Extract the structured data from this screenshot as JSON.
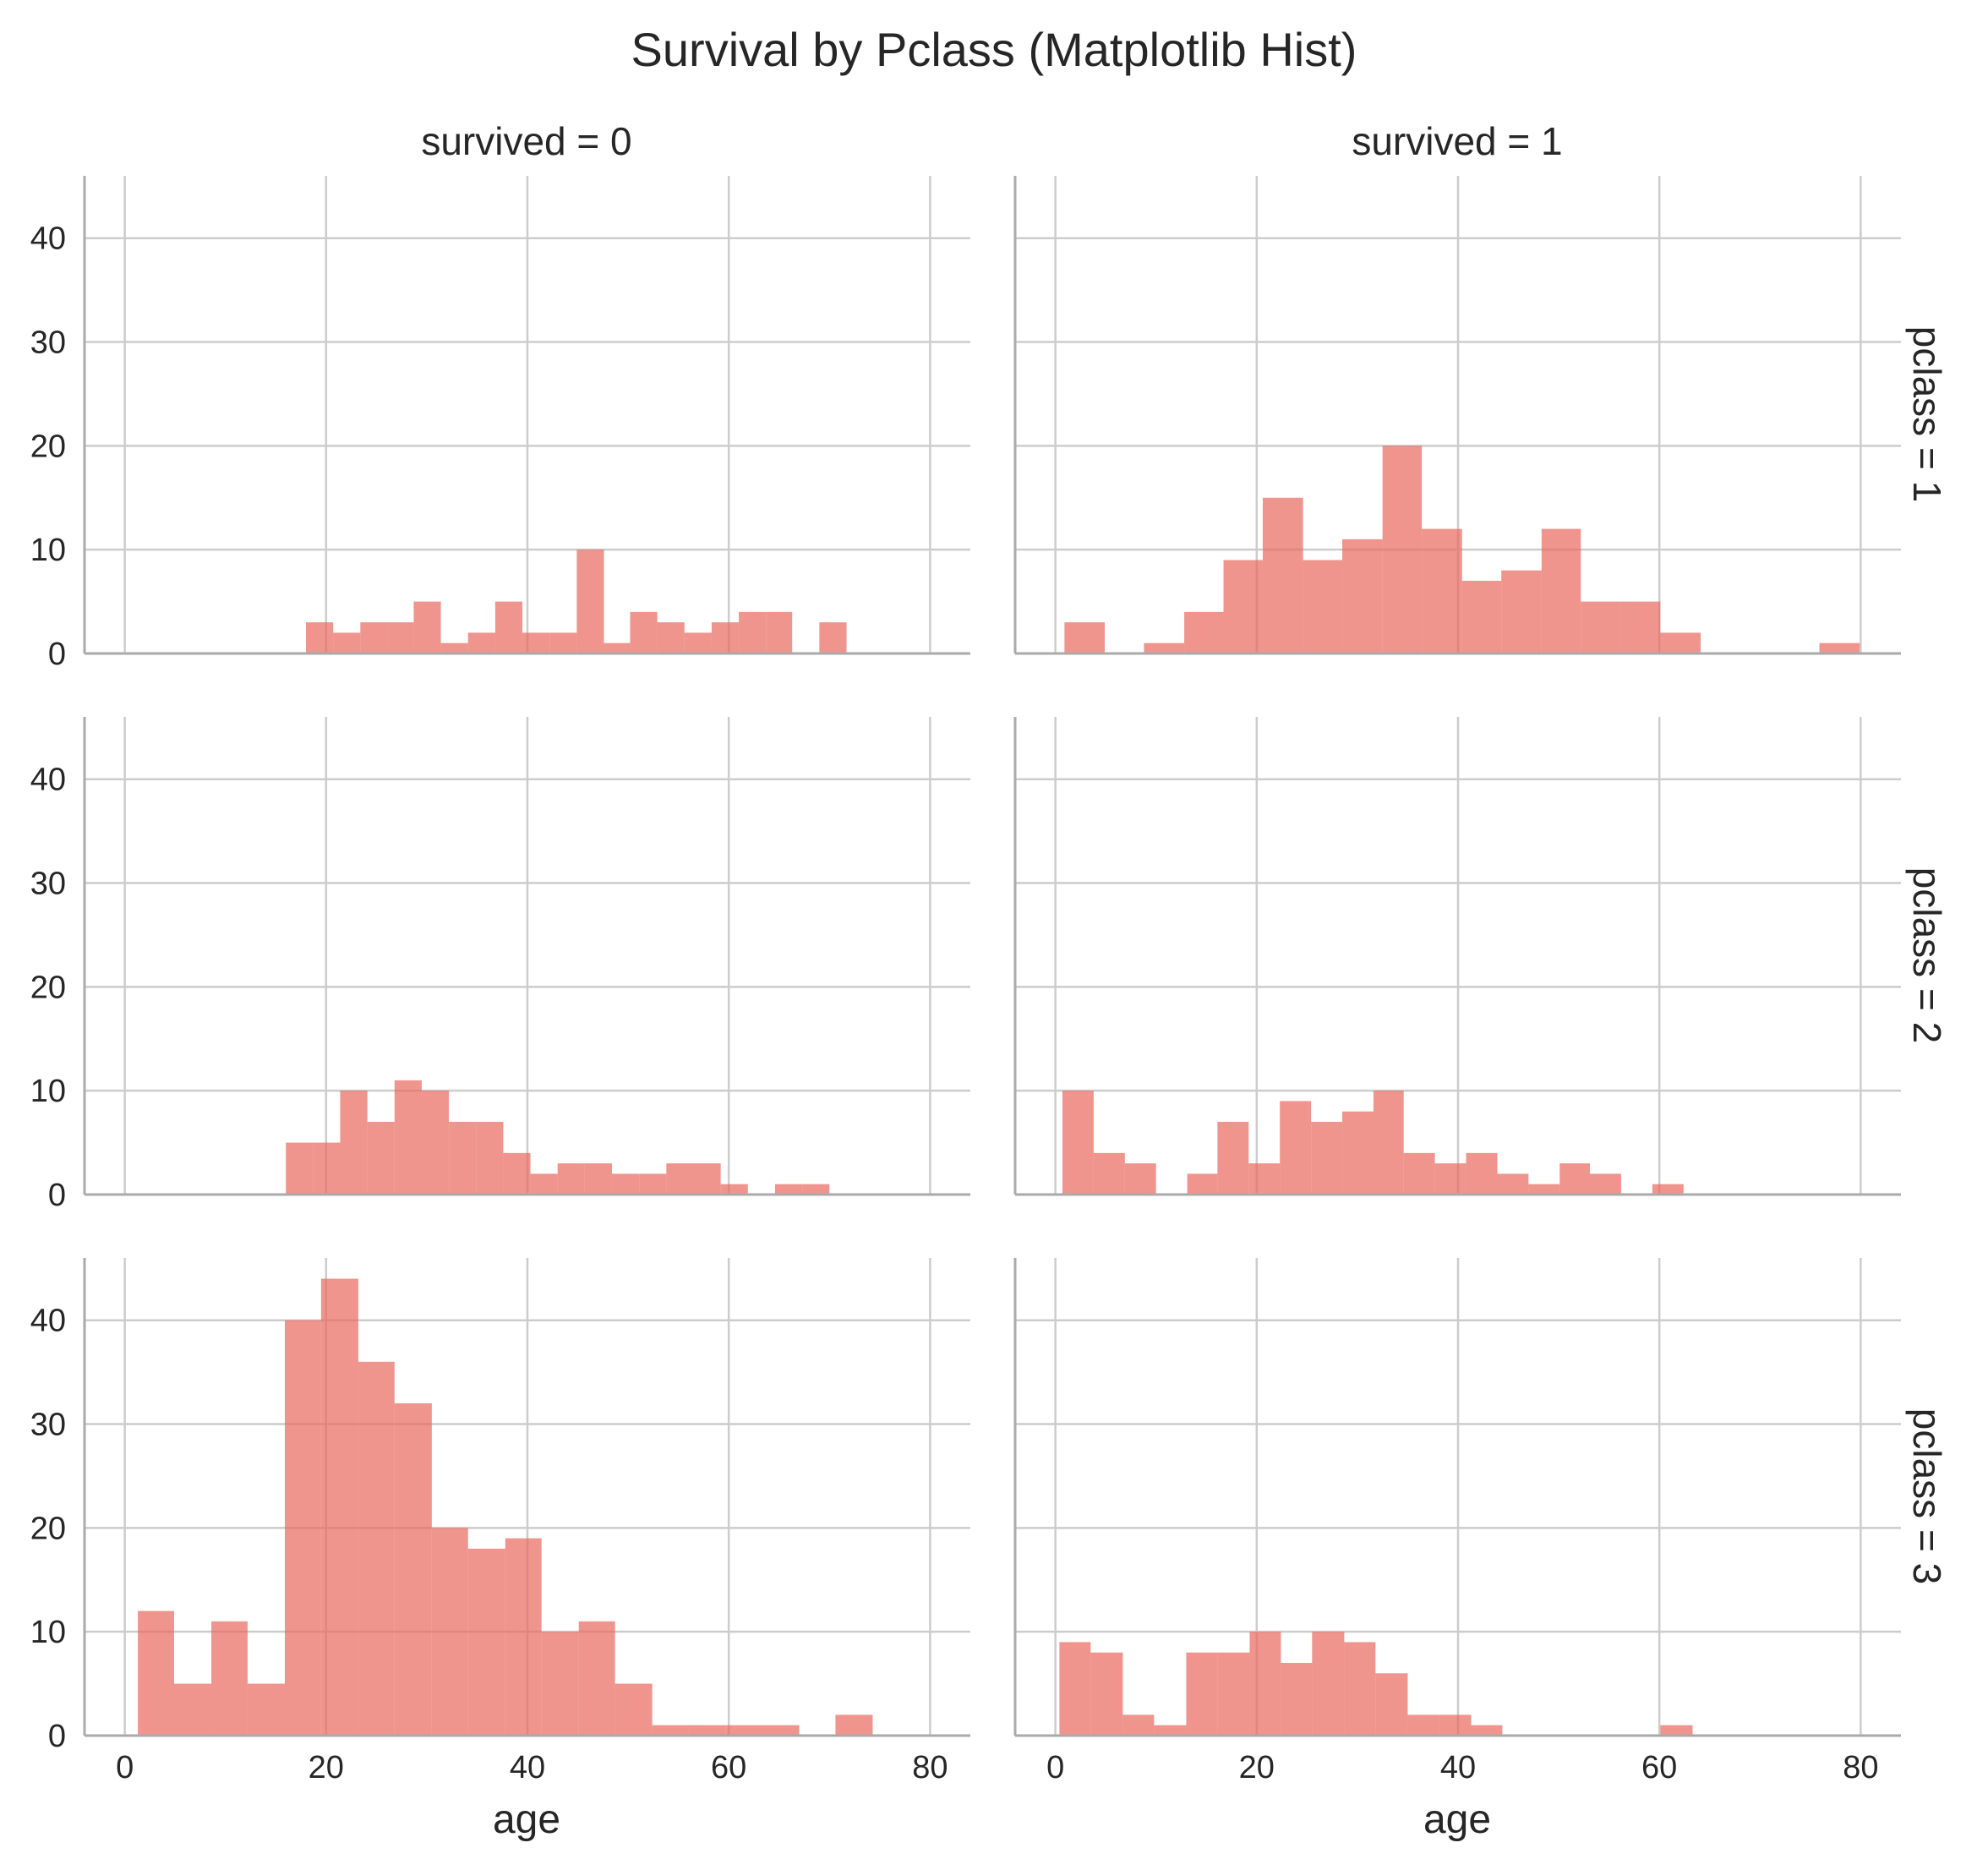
{
  "chart_data": {
    "type": "bar",
    "title": "Survival by Pclass (Matplotlib Hist)",
    "xlabel": "age",
    "ylabel": "",
    "xlim": [
      -4,
      84
    ],
    "ylim": [
      0,
      46
    ],
    "xticks": [
      "0",
      "20",
      "40",
      "60",
      "80"
    ],
    "yticks": [
      "0",
      "10",
      "20",
      "30",
      "40"
    ],
    "grid": true,
    "bar_color": "#e8685c",
    "col_labels": [
      "survived = 0",
      "survived = 1"
    ],
    "row_labels": [
      "pclass = 1",
      "pclass = 2",
      "pclass = 3"
    ],
    "panels": [
      {
        "row": 0,
        "col": 0,
        "bins": [
          {
            "x0": 18.0,
            "x1": 20.7,
            "value": 3
          },
          {
            "x0": 20.7,
            "x1": 23.4,
            "value": 2
          },
          {
            "x0": 23.4,
            "x1": 26.1,
            "value": 3
          },
          {
            "x0": 26.1,
            "x1": 28.7,
            "value": 3
          },
          {
            "x0": 28.7,
            "x1": 31.4,
            "value": 5
          },
          {
            "x0": 31.4,
            "x1": 34.1,
            "value": 1
          },
          {
            "x0": 34.1,
            "x1": 36.8,
            "value": 2
          },
          {
            "x0": 36.8,
            "x1": 39.5,
            "value": 5
          },
          {
            "x0": 39.5,
            "x1": 42.2,
            "value": 2
          },
          {
            "x0": 42.2,
            "x1": 44.9,
            "value": 2
          },
          {
            "x0": 44.9,
            "x1": 47.6,
            "value": 10
          },
          {
            "x0": 47.6,
            "x1": 50.2,
            "value": 1
          },
          {
            "x0": 50.2,
            "x1": 52.9,
            "value": 4
          },
          {
            "x0": 52.9,
            "x1": 55.6,
            "value": 3
          },
          {
            "x0": 55.6,
            "x1": 58.3,
            "value": 2
          },
          {
            "x0": 58.3,
            "x1": 61.0,
            "value": 3
          },
          {
            "x0": 61.0,
            "x1": 63.7,
            "value": 4
          },
          {
            "x0": 63.7,
            "x1": 66.3,
            "value": 4
          },
          {
            "x0": 66.3,
            "x1": 69.0,
            "value": 0
          },
          {
            "x0": 69.0,
            "x1": 71.7,
            "value": 3
          }
        ]
      },
      {
        "row": 0,
        "col": 1,
        "bins": [
          {
            "x0": 0.9,
            "x1": 4.9,
            "value": 3
          },
          {
            "x0": 4.9,
            "x1": 8.8,
            "value": 0
          },
          {
            "x0": 8.8,
            "x1": 12.8,
            "value": 1
          },
          {
            "x0": 12.8,
            "x1": 16.7,
            "value": 4
          },
          {
            "x0": 16.7,
            "x1": 20.6,
            "value": 9
          },
          {
            "x0": 20.6,
            "x1": 24.6,
            "value": 15
          },
          {
            "x0": 24.6,
            "x1": 28.5,
            "value": 9
          },
          {
            "x0": 28.5,
            "x1": 32.5,
            "value": 11
          },
          {
            "x0": 32.5,
            "x1": 36.4,
            "value": 20
          },
          {
            "x0": 36.4,
            "x1": 40.4,
            "value": 12
          },
          {
            "x0": 40.4,
            "x1": 44.3,
            "value": 7
          },
          {
            "x0": 44.3,
            "x1": 48.3,
            "value": 8
          },
          {
            "x0": 48.3,
            "x1": 52.2,
            "value": 12
          },
          {
            "x0": 52.2,
            "x1": 56.2,
            "value": 5
          },
          {
            "x0": 56.2,
            "x1": 60.1,
            "value": 5
          },
          {
            "x0": 60.1,
            "x1": 64.1,
            "value": 2
          },
          {
            "x0": 64.1,
            "x1": 68.0,
            "value": 0
          },
          {
            "x0": 68.0,
            "x1": 72.0,
            "value": 0
          },
          {
            "x0": 72.0,
            "x1": 75.9,
            "value": 0
          },
          {
            "x0": 75.9,
            "x1": 79.9,
            "value": 1
          }
        ]
      },
      {
        "row": 1,
        "col": 0,
        "bins": [
          {
            "x0": 16.0,
            "x1": 18.7,
            "value": 5
          },
          {
            "x0": 18.7,
            "x1": 21.4,
            "value": 5
          },
          {
            "x0": 21.4,
            "x1": 24.1,
            "value": 10
          },
          {
            "x0": 24.1,
            "x1": 26.8,
            "value": 7
          },
          {
            "x0": 26.8,
            "x1": 29.5,
            "value": 11
          },
          {
            "x0": 29.5,
            "x1": 32.2,
            "value": 10
          },
          {
            "x0": 32.2,
            "x1": 34.9,
            "value": 7
          },
          {
            "x0": 34.9,
            "x1": 37.6,
            "value": 7
          },
          {
            "x0": 37.6,
            "x1": 40.3,
            "value": 4
          },
          {
            "x0": 40.3,
            "x1": 43.0,
            "value": 2
          },
          {
            "x0": 43.0,
            "x1": 45.7,
            "value": 3
          },
          {
            "x0": 45.7,
            "x1": 48.4,
            "value": 3
          },
          {
            "x0": 48.4,
            "x1": 51.1,
            "value": 2
          },
          {
            "x0": 51.1,
            "x1": 53.8,
            "value": 2
          },
          {
            "x0": 53.8,
            "x1": 56.5,
            "value": 3
          },
          {
            "x0": 56.5,
            "x1": 59.2,
            "value": 3
          },
          {
            "x0": 59.2,
            "x1": 61.9,
            "value": 1
          },
          {
            "x0": 61.9,
            "x1": 64.6,
            "value": 0
          },
          {
            "x0": 64.6,
            "x1": 67.3,
            "value": 1
          },
          {
            "x0": 67.3,
            "x1": 70.0,
            "value": 1
          }
        ]
      },
      {
        "row": 1,
        "col": 1,
        "bins": [
          {
            "x0": 0.7,
            "x1": 3.8,
            "value": 10
          },
          {
            "x0": 3.8,
            "x1": 6.9,
            "value": 4
          },
          {
            "x0": 6.9,
            "x1": 10.0,
            "value": 3
          },
          {
            "x0": 10.0,
            "x1": 13.1,
            "value": 0
          },
          {
            "x0": 13.1,
            "x1": 16.1,
            "value": 2
          },
          {
            "x0": 16.1,
            "x1": 19.2,
            "value": 7
          },
          {
            "x0": 19.2,
            "x1": 22.3,
            "value": 3
          },
          {
            "x0": 22.3,
            "x1": 25.4,
            "value": 9
          },
          {
            "x0": 25.4,
            "x1": 28.5,
            "value": 7
          },
          {
            "x0": 28.5,
            "x1": 31.6,
            "value": 8
          },
          {
            "x0": 31.6,
            "x1": 34.6,
            "value": 10
          },
          {
            "x0": 34.6,
            "x1": 37.7,
            "value": 4
          },
          {
            "x0": 37.7,
            "x1": 40.8,
            "value": 3
          },
          {
            "x0": 40.8,
            "x1": 43.9,
            "value": 4
          },
          {
            "x0": 43.9,
            "x1": 47.0,
            "value": 2
          },
          {
            "x0": 47.0,
            "x1": 50.1,
            "value": 1
          },
          {
            "x0": 50.1,
            "x1": 53.1,
            "value": 3
          },
          {
            "x0": 53.1,
            "x1": 56.2,
            "value": 2
          },
          {
            "x0": 56.2,
            "x1": 59.3,
            "value": 0
          },
          {
            "x0": 59.3,
            "x1": 62.4,
            "value": 1
          }
        ]
      },
      {
        "row": 2,
        "col": 0,
        "bins": [
          {
            "x0": 1.3,
            "x1": 4.9,
            "value": 12
          },
          {
            "x0": 4.9,
            "x1": 8.6,
            "value": 5
          },
          {
            "x0": 8.6,
            "x1": 12.2,
            "value": 11
          },
          {
            "x0": 12.2,
            "x1": 15.9,
            "value": 5
          },
          {
            "x0": 15.9,
            "x1": 19.5,
            "value": 40
          },
          {
            "x0": 19.5,
            "x1": 23.2,
            "value": 44
          },
          {
            "x0": 23.2,
            "x1": 26.8,
            "value": 36
          },
          {
            "x0": 26.8,
            "x1": 30.5,
            "value": 32
          },
          {
            "x0": 30.5,
            "x1": 34.1,
            "value": 20
          },
          {
            "x0": 34.1,
            "x1": 37.8,
            "value": 18
          },
          {
            "x0": 37.8,
            "x1": 41.4,
            "value": 19
          },
          {
            "x0": 41.4,
            "x1": 45.1,
            "value": 10
          },
          {
            "x0": 45.1,
            "x1": 48.7,
            "value": 11
          },
          {
            "x0": 48.7,
            "x1": 52.4,
            "value": 5
          },
          {
            "x0": 52.4,
            "x1": 56.0,
            "value": 1
          },
          {
            "x0": 56.0,
            "x1": 59.7,
            "value": 1
          },
          {
            "x0": 59.7,
            "x1": 63.3,
            "value": 1
          },
          {
            "x0": 63.3,
            "x1": 67.0,
            "value": 1
          },
          {
            "x0": 67.0,
            "x1": 70.6,
            "value": 0
          },
          {
            "x0": 70.6,
            "x1": 74.3,
            "value": 2
          }
        ]
      },
      {
        "row": 2,
        "col": 1,
        "bins": [
          {
            "x0": 0.4,
            "x1": 3.5,
            "value": 9
          },
          {
            "x0": 3.5,
            "x1": 6.7,
            "value": 8
          },
          {
            "x0": 6.7,
            "x1": 9.8,
            "value": 2
          },
          {
            "x0": 9.8,
            "x1": 13.0,
            "value": 1
          },
          {
            "x0": 13.0,
            "x1": 16.1,
            "value": 8
          },
          {
            "x0": 16.1,
            "x1": 19.3,
            "value": 8
          },
          {
            "x0": 19.3,
            "x1": 22.4,
            "value": 10
          },
          {
            "x0": 22.4,
            "x1": 25.5,
            "value": 7
          },
          {
            "x0": 25.5,
            "x1": 28.7,
            "value": 10
          },
          {
            "x0": 28.7,
            "x1": 31.8,
            "value": 9
          },
          {
            "x0": 31.8,
            "x1": 35.0,
            "value": 6
          },
          {
            "x0": 35.0,
            "x1": 38.1,
            "value": 2
          },
          {
            "x0": 38.1,
            "x1": 41.3,
            "value": 2
          },
          {
            "x0": 41.3,
            "x1": 44.4,
            "value": 1
          },
          {
            "x0": 44.4,
            "x1": 47.5,
            "value": 0
          },
          {
            "x0": 47.5,
            "x1": 50.7,
            "value": 0
          },
          {
            "x0": 50.7,
            "x1": 53.8,
            "value": 0
          },
          {
            "x0": 53.8,
            "x1": 57.0,
            "value": 0
          },
          {
            "x0": 57.0,
            "x1": 60.1,
            "value": 0
          },
          {
            "x0": 60.1,
            "x1": 63.3,
            "value": 1
          }
        ]
      }
    ]
  }
}
